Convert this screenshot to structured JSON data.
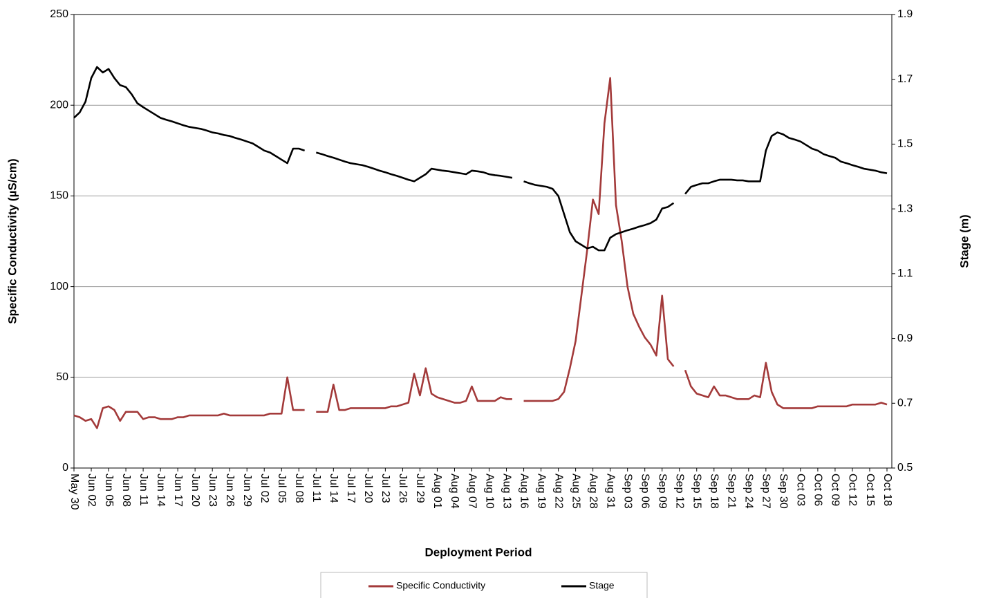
{
  "chart_data": {
    "type": "line",
    "x_label": "Deployment Period",
    "y_label": "Specific Conductivity (µS/cm)",
    "y2_label": "Stage (m)",
    "categories": [
      "May 30",
      null,
      null,
      "Jun 02",
      null,
      null,
      "Jun 05",
      null,
      null,
      "Jun 08",
      null,
      null,
      "Jun 11",
      null,
      null,
      "Jun 14",
      null,
      null,
      "Jun 17",
      null,
      null,
      "Jun 20",
      null,
      null,
      "Jun 23",
      null,
      null,
      "Jun 26",
      null,
      null,
      "Jun 29",
      null,
      null,
      "Jul 02",
      null,
      null,
      "Jul 05",
      null,
      null,
      "Jul 08",
      null,
      null,
      "Jul 11",
      null,
      null,
      "Jul 14",
      null,
      null,
      "Jul 17",
      null,
      null,
      "Jul 20",
      null,
      null,
      "Jul 23",
      null,
      null,
      "Jul 26",
      null,
      null,
      "Jul 29",
      null,
      null,
      "Aug 01",
      null,
      null,
      "Aug 04",
      null,
      null,
      "Aug 07",
      null,
      null,
      "Aug 10",
      null,
      null,
      "Aug 13",
      null,
      null,
      "Aug 16",
      null,
      null,
      "Aug 19",
      null,
      null,
      "Aug 22",
      null,
      null,
      "Aug 25",
      null,
      null,
      "Aug 28",
      null,
      null,
      "Aug 31",
      null,
      null,
      "Sep 03",
      null,
      null,
      "Sep 06",
      null,
      null,
      "Sep 09",
      null,
      null,
      "Sep 12",
      null,
      null,
      "Sep 15",
      null,
      null,
      "Sep 18",
      null,
      null,
      "Sep 21",
      null,
      null,
      "Sep 24",
      null,
      null,
      "Sep 27",
      null,
      null,
      "Sep 30",
      null,
      null,
      "Oct 03",
      null,
      null,
      "Oct 06",
      null,
      null,
      "Oct 09",
      null,
      null,
      "Oct 12",
      null,
      null,
      "Oct 15",
      null,
      null,
      "Oct 18"
    ],
    "series": [
      {
        "name": "Specific Conductivity",
        "color": "#a33a3a",
        "values": [
          29,
          28,
          26,
          27,
          22,
          33,
          34,
          32,
          26,
          31,
          31,
          31,
          27,
          28,
          28,
          27,
          27,
          27,
          28,
          28,
          29,
          29,
          29,
          29,
          29,
          29,
          30,
          29,
          29,
          29,
          29,
          29,
          29,
          29,
          30,
          30,
          30,
          50,
          32,
          32,
          32,
          null,
          31,
          31,
          31,
          46,
          32,
          32,
          33,
          33,
          33,
          33,
          33,
          33,
          33,
          34,
          34,
          35,
          36,
          52,
          40,
          55,
          41,
          39,
          38,
          37,
          36,
          36,
          37,
          45,
          37,
          37,
          37,
          37,
          39,
          38,
          38,
          null,
          37,
          37,
          37,
          37,
          37,
          37,
          38,
          42,
          55,
          70,
          95,
          120,
          148,
          140,
          190,
          215,
          145,
          125,
          100,
          85,
          78,
          72,
          68,
          62,
          95,
          60,
          56,
          null,
          54,
          45,
          41,
          40,
          39,
          45,
          40,
          40,
          39,
          38,
          38,
          38,
          40,
          39,
          58,
          42,
          35,
          33,
          33,
          33,
          33,
          33,
          33,
          34,
          34,
          34,
          34,
          34,
          34,
          35,
          35,
          35,
          35,
          35,
          36,
          35
        ]
      },
      {
        "name": "Stage",
        "color": "#000000",
        "axis": "y2",
        "values": [
          1.581,
          1.598,
          1.631,
          1.704,
          1.738,
          1.721,
          1.732,
          1.704,
          1.682,
          1.676,
          1.654,
          1.626,
          1.614,
          1.603,
          1.592,
          1.581,
          1.575,
          1.57,
          1.564,
          1.558,
          1.553,
          1.55,
          1.547,
          1.542,
          1.536,
          1.533,
          1.528,
          1.525,
          1.519,
          1.514,
          1.508,
          1.502,
          1.491,
          1.48,
          1.474,
          1.463,
          1.452,
          1.441,
          1.486,
          1.486,
          1.48,
          null,
          1.474,
          1.469,
          1.463,
          1.458,
          1.452,
          1.446,
          1.441,
          1.438,
          1.435,
          1.43,
          1.424,
          1.418,
          1.413,
          1.407,
          1.402,
          1.396,
          1.39,
          1.385,
          1.396,
          1.407,
          1.424,
          1.421,
          1.418,
          1.416,
          1.413,
          1.41,
          1.407,
          1.418,
          1.416,
          1.413,
          1.407,
          1.404,
          1.402,
          1.399,
          1.396,
          null,
          1.385,
          1.379,
          1.374,
          1.371,
          1.368,
          1.362,
          1.34,
          1.284,
          1.228,
          1.2,
          1.189,
          1.178,
          1.183,
          1.172,
          1.172,
          1.211,
          1.222,
          1.228,
          1.234,
          1.239,
          1.245,
          1.25,
          1.256,
          1.267,
          1.301,
          1.306,
          1.318,
          null,
          1.346,
          1.368,
          1.374,
          1.379,
          1.379,
          1.385,
          1.39,
          1.39,
          1.39,
          1.388,
          1.388,
          1.385,
          1.385,
          1.385,
          1.48,
          1.525,
          1.536,
          1.53,
          1.519,
          1.514,
          1.508,
          1.497,
          1.486,
          1.48,
          1.469,
          1.463,
          1.458,
          1.446,
          1.441,
          1.435,
          1.43,
          1.424,
          1.421,
          1.418,
          1.413,
          1.41
        ]
      }
    ],
    "ylim": [
      0,
      250
    ],
    "yticks": [
      0,
      50,
      100,
      150,
      200,
      250
    ],
    "y2lim": [
      0.5,
      1.9
    ],
    "y2ticks": [
      0.5,
      0.7,
      0.9,
      1.1,
      1.3,
      1.5,
      1.7,
      1.9
    ],
    "grid": true,
    "legend": "bottom"
  }
}
